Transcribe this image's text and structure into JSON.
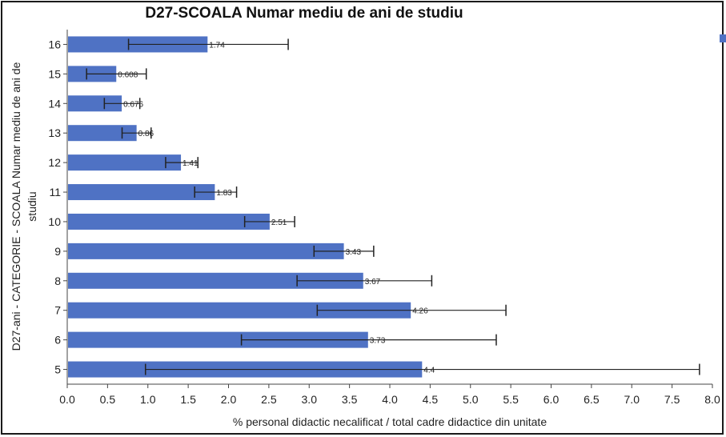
{
  "chart_data": {
    "type": "bar",
    "orientation": "horizontal",
    "title": "D27-SCOALA Numar mediu de ani de studiu",
    "xlabel": "% personal didactic necalificat / total cadre didactice din unitate",
    "ylabel": [
      "D27-ani - CATEGORIE - SCOALA Numar mediu de ani de",
      "studiu"
    ],
    "categories": [
      "16",
      "15",
      "14",
      "13",
      "12",
      "11",
      "10",
      "9",
      "8",
      "7",
      "6",
      "5"
    ],
    "values": [
      1.74,
      0.608,
      0.676,
      0.86,
      1.41,
      1.83,
      2.51,
      3.43,
      3.67,
      4.26,
      3.73,
      4.4
    ],
    "value_labels": [
      "1.74",
      "0.608",
      "0.676",
      "0.86",
      "1.41",
      "1.83",
      "2.51",
      "3.43",
      "3.67",
      "4.26",
      "3.73",
      "4.4"
    ],
    "error_low": [
      0.76,
      0.24,
      0.46,
      0.68,
      1.22,
      1.58,
      2.2,
      3.06,
      2.85,
      3.1,
      2.16,
      0.97
    ],
    "error_high": [
      2.74,
      0.98,
      0.9,
      1.04,
      1.62,
      2.1,
      2.82,
      3.8,
      4.52,
      5.44,
      5.32,
      7.84
    ],
    "xlim": [
      0,
      8
    ],
    "x_ticks": [
      "0.0",
      "0.5",
      "1.0",
      "1.5",
      "2.0",
      "2.5",
      "3.0",
      "3.5",
      "4.0",
      "4.5",
      "5.0",
      "5.5",
      "6.0",
      "6.5",
      "7.0",
      "7.5",
      "8.0"
    ],
    "bar_color": "#4f72c4",
    "legend": "top-right",
    "grid": false
  }
}
